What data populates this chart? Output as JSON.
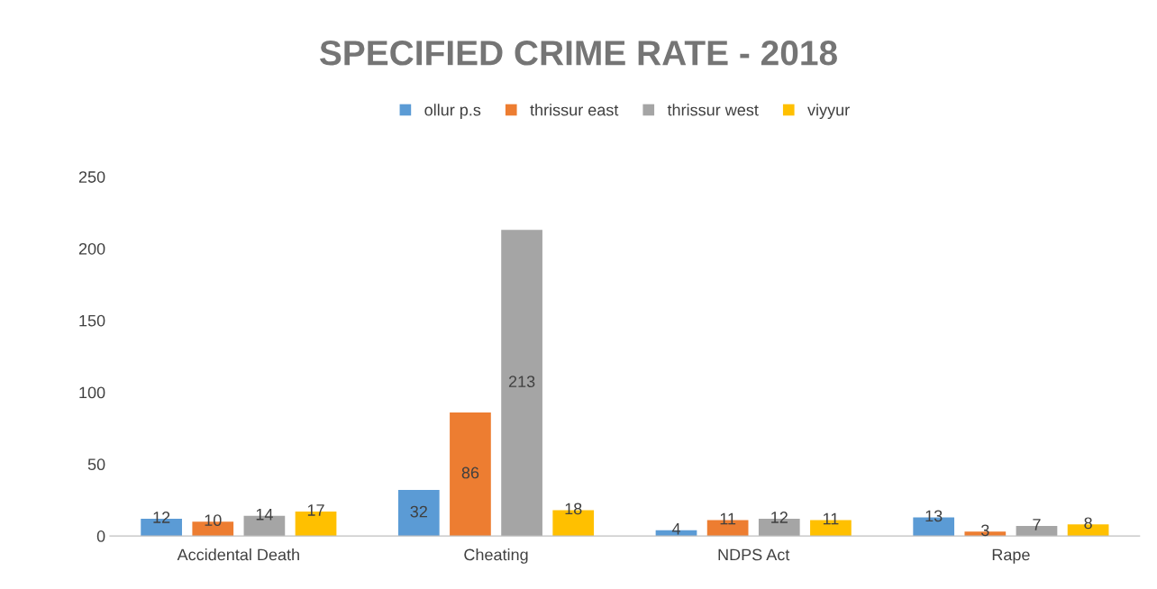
{
  "chart_data": {
    "type": "bar",
    "title": "SPECIFIED CRIME RATE - 2018",
    "categories": [
      "Accidental Death",
      "Cheating",
      "NDPS Act",
      "Rape"
    ],
    "series": [
      {
        "name": "ollur p.s",
        "color": "#5b9bd5",
        "values": [
          12,
          32,
          4,
          13
        ]
      },
      {
        "name": "thrissur east",
        "color": "#ed7d31",
        "values": [
          10,
          86,
          11,
          3
        ]
      },
      {
        "name": "thrissur west",
        "color": "#a5a5a5",
        "values": [
          14,
          213,
          12,
          7
        ]
      },
      {
        "name": "viyyur",
        "color": "#ffc000",
        "values": [
          17,
          18,
          11,
          8
        ]
      }
    ],
    "ylim": [
      0,
      250
    ],
    "yticks": [
      0,
      50,
      100,
      150,
      200,
      250
    ],
    "grid": false,
    "legend": "top",
    "data_labels": true
  }
}
